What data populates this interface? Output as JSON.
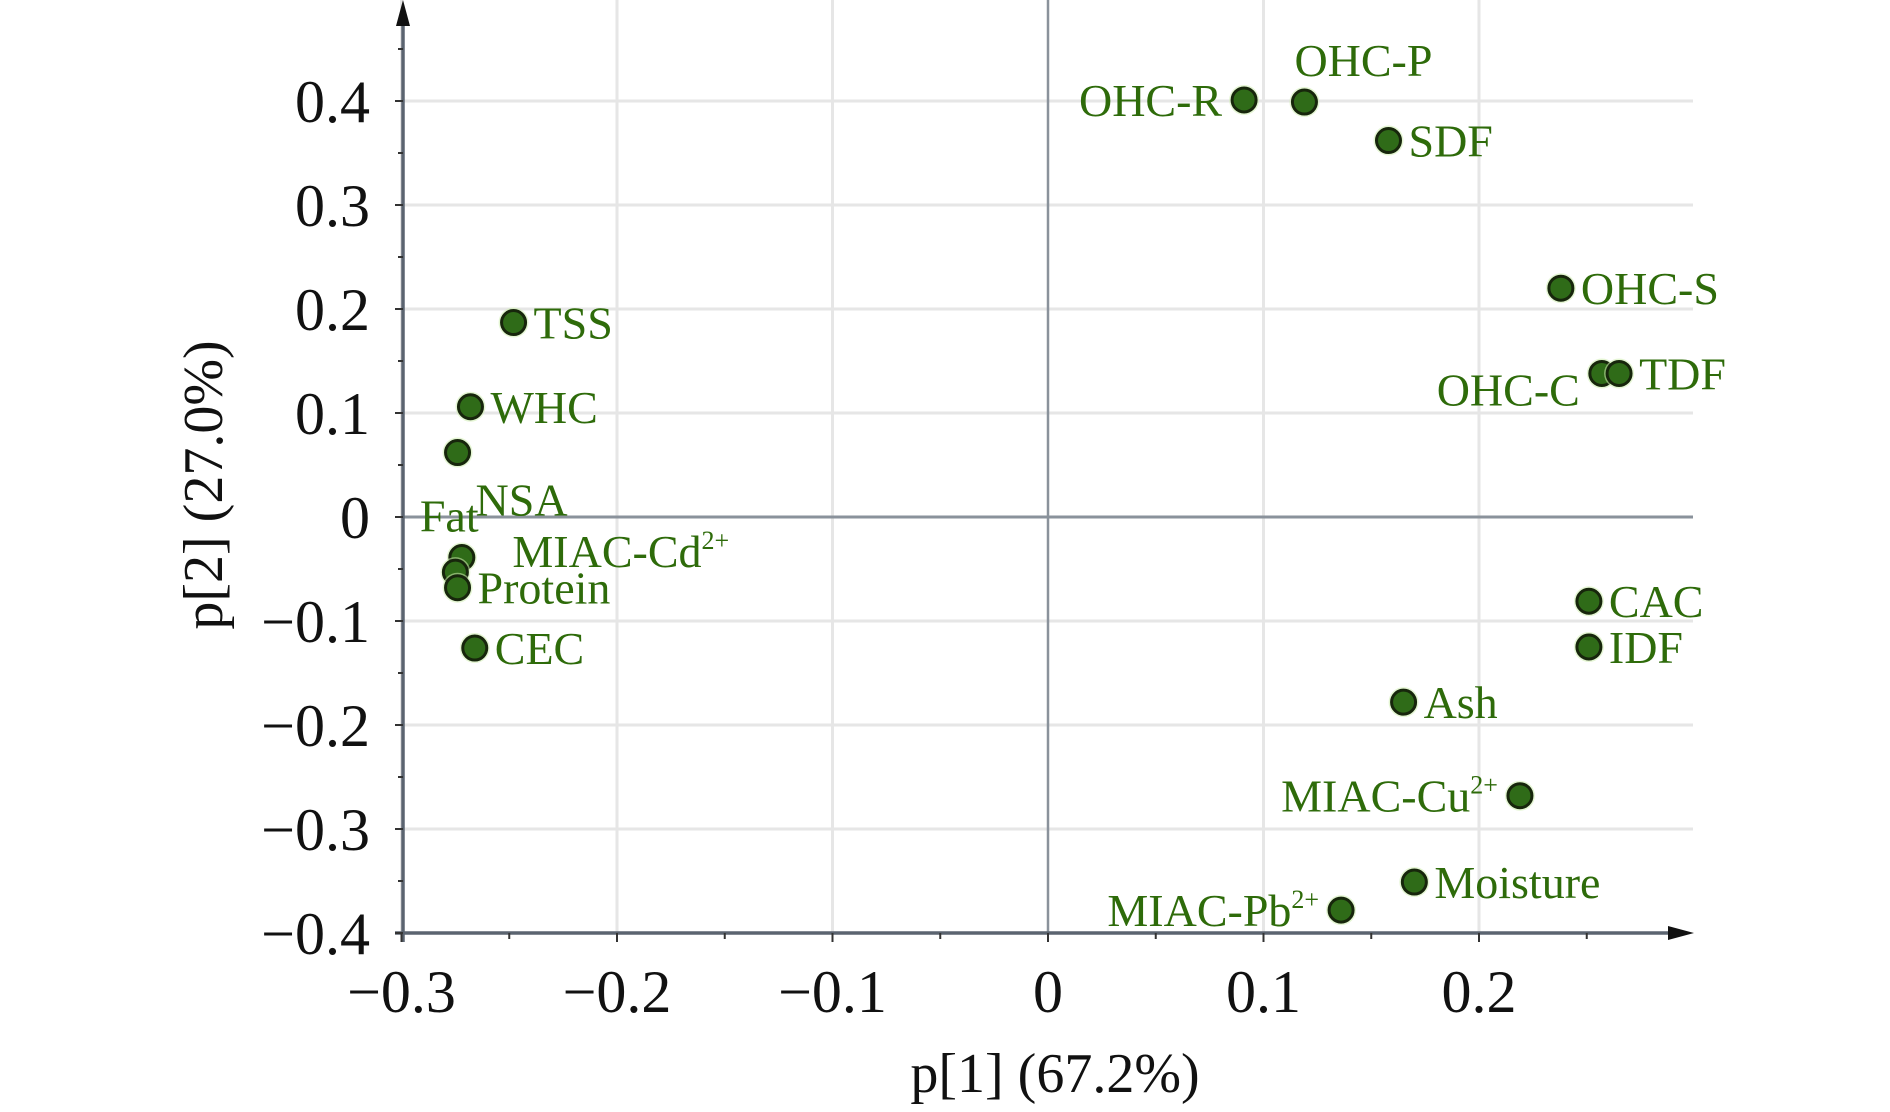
{
  "chart_data": {
    "type": "scatter",
    "title": "",
    "xlabel": "p[1] (67.2%)",
    "ylabel": "p[2] (27.0%)",
    "xlim": [
      -0.3,
      0.3
    ],
    "ylim": [
      -0.4,
      0.48
    ],
    "xticks": [
      -0.3,
      -0.2,
      -0.1,
      0,
      0.1,
      0.2
    ],
    "xtick_labels": [
      "−0.3",
      "−0.2",
      "−0.1",
      "0",
      "0.1",
      "0.2"
    ],
    "yticks": [
      0.4,
      0.3,
      0.2,
      0.1,
      0,
      -0.1,
      -0.2,
      -0.3,
      -0.4
    ],
    "ytick_labels": [
      "0.4",
      "0.3",
      "0.2",
      "0.1",
      "0",
      "−0.1",
      "−0.2",
      "−0.3",
      "−0.4"
    ],
    "grid": true,
    "legend": "none",
    "colors": {
      "point_fill": "#2f6b18",
      "point_stroke": "#17260c",
      "label_text": "#2e6b0a",
      "axis": "#5b6470",
      "grid": "#e6e6e6"
    },
    "points": [
      {
        "name": "OHC-R",
        "base": "OHC-R",
        "sup": "",
        "x": 0.091,
        "y": 0.401,
        "label_pos": "left"
      },
      {
        "name": "OHC-P",
        "base": "OHC-P",
        "sup": "",
        "x": 0.119,
        "y": 0.399,
        "label_pos": "above"
      },
      {
        "name": "SDF",
        "base": "SDF",
        "sup": "",
        "x": 0.158,
        "y": 0.362,
        "label_pos": "right"
      },
      {
        "name": "OHC-S",
        "base": "OHC-S",
        "sup": "",
        "x": 0.238,
        "y": 0.22,
        "label_pos": "right"
      },
      {
        "name": "OHC-C",
        "base": "OHC-C",
        "sup": "",
        "x": 0.257,
        "y": 0.138,
        "label_pos": "left-below"
      },
      {
        "name": "TDF",
        "base": "TDF",
        "sup": "",
        "x": 0.265,
        "y": 0.138,
        "label_pos": "right"
      },
      {
        "name": "CAC",
        "base": "CAC",
        "sup": "",
        "x": 0.251,
        "y": -0.081,
        "label_pos": "right"
      },
      {
        "name": "IDF",
        "base": "IDF",
        "sup": "",
        "x": 0.251,
        "y": -0.125,
        "label_pos": "right"
      },
      {
        "name": "Ash",
        "base": "Ash",
        "sup": "",
        "x": 0.165,
        "y": -0.178,
        "label_pos": "right"
      },
      {
        "name": "MIAC-Cu2+",
        "base": "MIAC-Cu",
        "sup": "2+",
        "x": 0.219,
        "y": -0.268,
        "label_pos": "left"
      },
      {
        "name": "Moisture",
        "base": "Moisture",
        "sup": "",
        "x": 0.17,
        "y": -0.351,
        "label_pos": "right"
      },
      {
        "name": "MIAC-Pb2+",
        "base": "MIAC-Pb",
        "sup": "2+",
        "x": 0.136,
        "y": -0.378,
        "label_pos": "left"
      },
      {
        "name": "TSS",
        "base": "TSS",
        "sup": "",
        "x": -0.248,
        "y": 0.187,
        "label_pos": "right"
      },
      {
        "name": "WHC",
        "base": "WHC",
        "sup": "",
        "x": -0.268,
        "y": 0.106,
        "label_pos": "right"
      },
      {
        "name": "NSA",
        "base": "NSA",
        "sup": "",
        "x": -0.274,
        "y": 0.062,
        "label_pos": "right-below"
      },
      {
        "name": "Fat",
        "base": "Fat",
        "sup": "",
        "x": -0.272,
        "y": -0.039,
        "label_pos": "above-left"
      },
      {
        "name": "MIAC-Cd2+",
        "base": "MIAC-Cd",
        "sup": "2+",
        "x": -0.275,
        "y": -0.053,
        "label_pos": "right-above"
      },
      {
        "name": "Protein",
        "base": "Protein",
        "sup": "",
        "x": -0.274,
        "y": -0.068,
        "label_pos": "right"
      },
      {
        "name": "CEC",
        "base": "CEC",
        "sup": "",
        "x": -0.266,
        "y": -0.126,
        "label_pos": "right"
      }
    ]
  }
}
